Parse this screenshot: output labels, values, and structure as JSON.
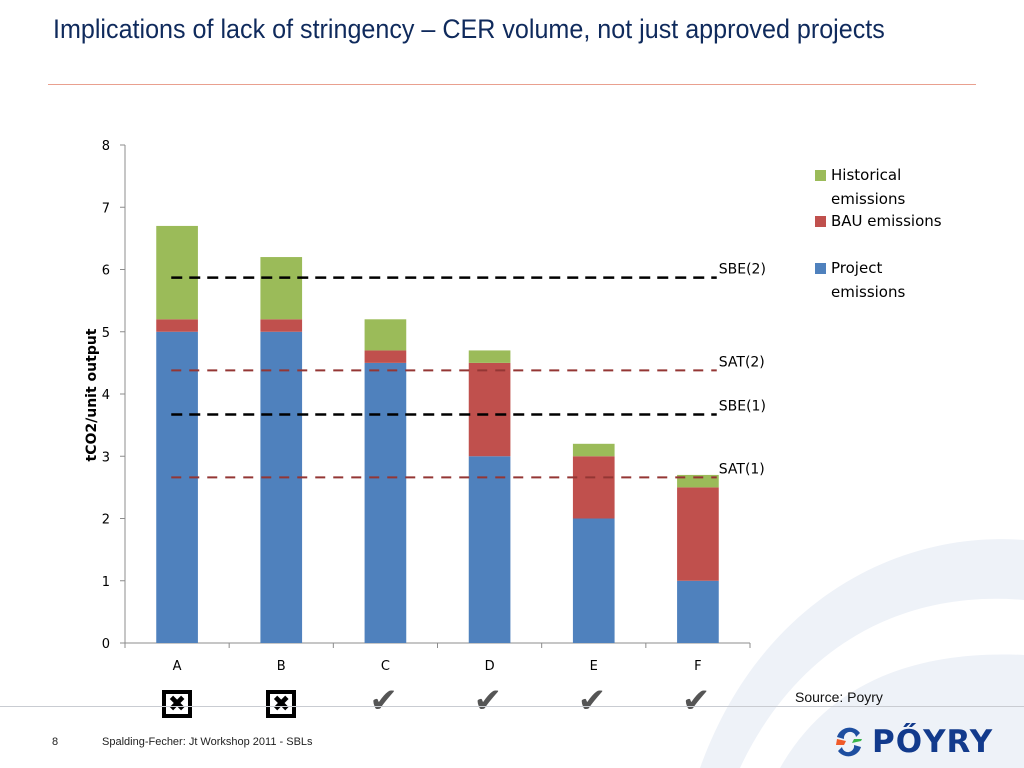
{
  "slide": {
    "title": "Implications of lack of stringency – CER volume, not just approved projects",
    "page_number": "8",
    "footer": "Spalding-Fecher: Jt Workshop 2011 - SBLs",
    "source": "Source: Poyry",
    "logo_text": "PŐYRY"
  },
  "status_marks": [
    {
      "category": "A",
      "status": "rejected",
      "glyph": "✖"
    },
    {
      "category": "B",
      "status": "rejected",
      "glyph": "✖"
    },
    {
      "category": "C",
      "status": "approved",
      "glyph": "✔"
    },
    {
      "category": "D",
      "status": "approved",
      "glyph": "✔"
    },
    {
      "category": "E",
      "status": "approved",
      "glyph": "✔"
    },
    {
      "category": "F",
      "status": "approved",
      "glyph": "✔"
    }
  ],
  "chart_data": {
    "type": "bar",
    "stacked": true,
    "title": "",
    "xlabel": "",
    "ylabel": "tCO2/unit output",
    "categories": [
      "A",
      "B",
      "C",
      "D",
      "E",
      "F"
    ],
    "ylim": [
      0,
      8
    ],
    "yticks": [
      0,
      1,
      2,
      3,
      4,
      5,
      6,
      7,
      8
    ],
    "grid": false,
    "legend_position": "right",
    "series": [
      {
        "name": "Project emissions",
        "color": "#4f81bd",
        "values": [
          5.0,
          5.0,
          4.5,
          3.0,
          2.0,
          1.0
        ]
      },
      {
        "name": "BAU emissions",
        "color": "#c0504d",
        "values": [
          0.2,
          0.2,
          0.2,
          1.5,
          1.0,
          1.5
        ]
      },
      {
        "name": "Historical emissions",
        "color": "#9bbb59",
        "values": [
          1.5,
          1.0,
          0.5,
          0.2,
          0.2,
          0.2
        ]
      }
    ],
    "legend": [
      "Historical emissions",
      "BAU emissions",
      "Project emissions"
    ],
    "reference_lines": [
      {
        "label": "SBE(2)",
        "value": 5.87,
        "color": "#000000"
      },
      {
        "label": "SAT(2)",
        "value": 4.38,
        "color": "#943634"
      },
      {
        "label": "SBE(1)",
        "value": 3.67,
        "color": "#000000"
      },
      {
        "label": "SAT(1)",
        "value": 2.66,
        "color": "#943634"
      }
    ]
  }
}
